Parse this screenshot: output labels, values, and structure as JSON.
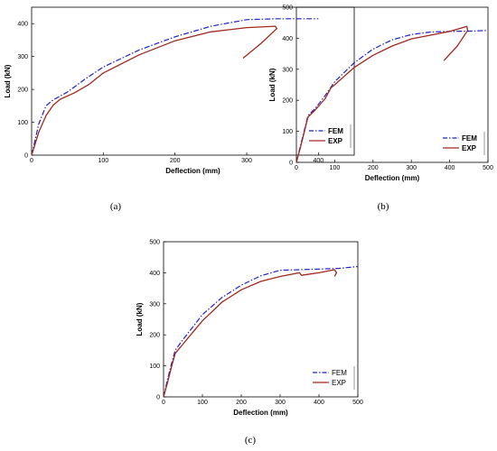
{
  "colors": {
    "fem": "#1f1fc8",
    "exp": "#a0281e",
    "axis": "#000000"
  },
  "chart_data": [
    {
      "type": "line",
      "panel_label": "(a)",
      "xlabel": "Deflection (mm)",
      "ylabel": "Load (kN)",
      "xlim": [
        0,
        450
      ],
      "ylim": [
        0,
        450
      ],
      "xticks": [
        0,
        100,
        200,
        300,
        400
      ],
      "yticks": [
        0,
        100,
        200,
        300,
        400
      ],
      "legend": "bottom-right",
      "grid": false,
      "series": [
        {
          "name": "FEM",
          "key": "fem",
          "x": [
            0,
            5,
            10,
            20,
            30,
            50,
            75,
            100,
            150,
            200,
            250,
            300,
            340,
            400
          ],
          "y": [
            0,
            48,
            95,
            150,
            168,
            192,
            232,
            268,
            320,
            360,
            392,
            412,
            415,
            415
          ]
        },
        {
          "name": "EXP",
          "key": "exp",
          "x": [
            0,
            5,
            10,
            20,
            30,
            40,
            60,
            80,
            100,
            150,
            200,
            250,
            300,
            340,
            342,
            320,
            295
          ],
          "y": [
            0,
            35,
            70,
            120,
            152,
            170,
            190,
            215,
            250,
            305,
            348,
            375,
            388,
            392,
            385,
            340,
            295
          ]
        }
      ]
    },
    {
      "type": "line",
      "panel_label": "(b)",
      "xlabel": "Deflection (mm)",
      "ylabel": "Load (kN)",
      "xlim": [
        0,
        500
      ],
      "ylim": [
        0,
        500
      ],
      "xticks": [
        0,
        100,
        200,
        300,
        400,
        500
      ],
      "yticks": [
        0,
        100,
        200,
        300,
        400,
        500
      ],
      "legend": "bottom-right",
      "grid": false,
      "series": [
        {
          "name": "FEM",
          "key": "fem",
          "x": [
            0,
            10,
            20,
            30,
            50,
            75,
            100,
            150,
            200,
            250,
            300,
            350,
            400,
            450,
            500
          ],
          "y": [
            0,
            50,
            100,
            150,
            175,
            215,
            260,
            320,
            365,
            395,
            412,
            420,
            422,
            423,
            425
          ]
        },
        {
          "name": "EXP",
          "key": "exp",
          "x": [
            0,
            10,
            20,
            30,
            50,
            75,
            90,
            100,
            150,
            200,
            250,
            300,
            350,
            400,
            445,
            447,
            420,
            385
          ],
          "y": [
            0,
            45,
            95,
            145,
            170,
            205,
            240,
            250,
            305,
            345,
            375,
            398,
            410,
            422,
            438,
            425,
            375,
            328
          ]
        }
      ]
    },
    {
      "type": "line",
      "panel_label": "(c)",
      "xlabel": "Deflection (mm)",
      "ylabel": "Load (kN)",
      "xlim": [
        0,
        500
      ],
      "ylim": [
        0,
        500
      ],
      "xticks": [
        0,
        100,
        200,
        300,
        400,
        500
      ],
      "yticks": [
        0,
        100,
        200,
        300,
        400,
        500
      ],
      "legend": "bottom-right",
      "grid": false,
      "series": [
        {
          "name": "FEM",
          "key": "fem",
          "x": [
            0,
            10,
            20,
            30,
            50,
            75,
            100,
            150,
            200,
            250,
            300,
            350,
            400,
            450,
            500
          ],
          "y": [
            0,
            55,
            105,
            150,
            185,
            225,
            265,
            320,
            360,
            390,
            408,
            410,
            412,
            414,
            420
          ]
        },
        {
          "name": "EXP",
          "key": "exp",
          "x": [
            0,
            10,
            20,
            30,
            50,
            75,
            100,
            150,
            200,
            250,
            300,
            350,
            355,
            400,
            440,
            445,
            440
          ],
          "y": [
            0,
            45,
            95,
            140,
            170,
            208,
            245,
            305,
            345,
            372,
            388,
            400,
            392,
            400,
            410,
            400,
            388
          ]
        }
      ]
    }
  ]
}
